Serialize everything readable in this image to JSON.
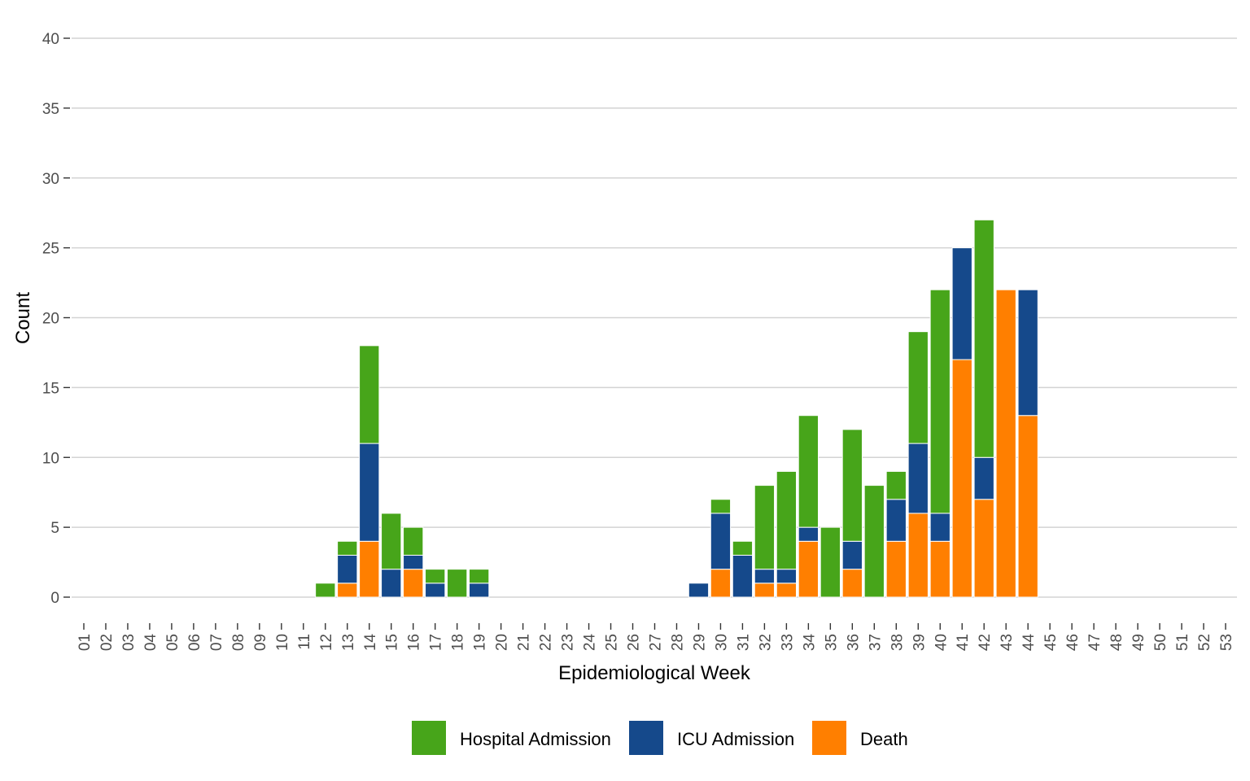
{
  "chart_data": {
    "type": "bar",
    "stacked": true,
    "title": "",
    "xlabel": "Epidemiological Week",
    "ylabel": "Count",
    "ylim": [
      0,
      40
    ],
    "yticks": [
      0,
      5,
      10,
      15,
      20,
      25,
      30,
      35,
      40
    ],
    "grid": "horizontal",
    "legend_position": "bottom",
    "categories": [
      "01",
      "02",
      "03",
      "04",
      "05",
      "06",
      "07",
      "08",
      "09",
      "10",
      "11",
      "12",
      "13",
      "14",
      "15",
      "16",
      "17",
      "18",
      "19",
      "20",
      "21",
      "22",
      "23",
      "24",
      "25",
      "26",
      "27",
      "28",
      "29",
      "30",
      "31",
      "32",
      "33",
      "34",
      "35",
      "36",
      "37",
      "38",
      "39",
      "40",
      "41",
      "42",
      "43",
      "44",
      "45",
      "46",
      "47",
      "48",
      "49",
      "50",
      "51",
      "52",
      "53"
    ],
    "series": [
      {
        "name": "Death",
        "color": "#ff7f00",
        "values": [
          0,
          0,
          0,
          0,
          0,
          0,
          0,
          0,
          0,
          0,
          0,
          0,
          1,
          4,
          0,
          2,
          0,
          0,
          0,
          0,
          0,
          0,
          0,
          0,
          0,
          0,
          0,
          0,
          0,
          2,
          0,
          1,
          1,
          4,
          0,
          2,
          0,
          4,
          6,
          4,
          17,
          7,
          22,
          13,
          0,
          0,
          0,
          0,
          0,
          0,
          0,
          0,
          0
        ]
      },
      {
        "name": "ICU Admission",
        "color": "#15498b",
        "values": [
          0,
          0,
          0,
          0,
          0,
          0,
          0,
          0,
          0,
          0,
          0,
          0,
          2,
          7,
          2,
          1,
          1,
          0,
          1,
          0,
          0,
          0,
          0,
          0,
          0,
          0,
          0,
          0,
          1,
          4,
          3,
          1,
          1,
          1,
          0,
          2,
          0,
          3,
          5,
          2,
          8,
          3,
          0,
          9,
          0,
          0,
          0,
          0,
          0,
          0,
          0,
          0,
          0
        ]
      },
      {
        "name": "Hospital Admission",
        "color": "#47a51a",
        "values": [
          0,
          0,
          0,
          0,
          0,
          0,
          0,
          0,
          0,
          0,
          0,
          1,
          1,
          7,
          4,
          2,
          1,
          2,
          1,
          0,
          0,
          0,
          0,
          0,
          0,
          0,
          0,
          0,
          0,
          1,
          1,
          6,
          7,
          8,
          5,
          8,
          8,
          2,
          8,
          16,
          0,
          17,
          0,
          0,
          0,
          0,
          0,
          0,
          0,
          0,
          0,
          0,
          0
        ]
      }
    ],
    "legend": [
      {
        "label": "Hospital Admission",
        "color": "#47a51a"
      },
      {
        "label": "ICU Admission",
        "color": "#15498b"
      },
      {
        "label": "Death",
        "color": "#ff7f00"
      }
    ]
  }
}
